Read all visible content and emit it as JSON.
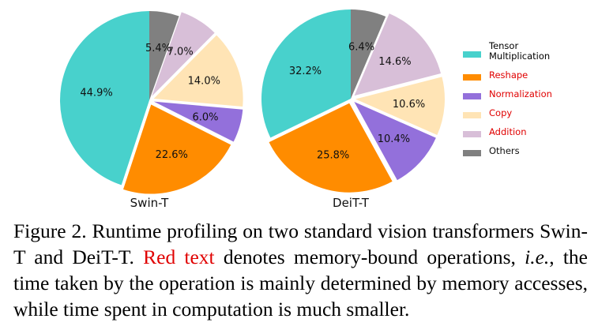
{
  "chart_data": [
    {
      "type": "pie",
      "title": "Swin-T",
      "categories": [
        "Tensor Multiplication",
        "Reshape",
        "Normalization",
        "Copy",
        "Addition",
        "Others"
      ],
      "values": [
        44.9,
        22.6,
        6.0,
        14.0,
        7.0,
        5.4
      ],
      "labels": [
        "44.9%",
        "22.6%",
        "6.0%",
        "14.0%",
        "7.0%",
        "5.4%"
      ],
      "exploded": [
        "Reshape",
        "Normalization",
        "Copy",
        "Addition"
      ]
    },
    {
      "type": "pie",
      "title": "DeiT-T",
      "categories": [
        "Tensor Multiplication",
        "Reshape",
        "Normalization",
        "Copy",
        "Addition",
        "Others"
      ],
      "values": [
        32.2,
        25.8,
        10.4,
        10.6,
        14.6,
        6.4
      ],
      "labels": [
        "32.2%",
        "25.8%",
        "10.4%",
        "10.6%",
        "14.6%",
        "6.4%"
      ],
      "exploded": [
        "Reshape",
        "Normalization",
        "Copy",
        "Addition"
      ]
    }
  ],
  "legend": {
    "items": [
      {
        "line1": "Tensor",
        "line2": "Multiplication",
        "color": "#48d1cc",
        "text_color": "#111111"
      },
      {
        "line1": "Reshape",
        "line2": "",
        "color": "#ff8c00",
        "text_color": "#e00000"
      },
      {
        "line1": "Normalization",
        "line2": "",
        "color": "#9370db",
        "text_color": "#e00000"
      },
      {
        "line1": "Copy",
        "line2": "",
        "color": "#ffe4b5",
        "text_color": "#e00000"
      },
      {
        "line1": "Addition",
        "line2": "",
        "color": "#d8bfd8",
        "text_color": "#e00000"
      },
      {
        "line1": "Others",
        "line2": "",
        "color": "#808080",
        "text_color": "#111111"
      }
    ]
  },
  "caption": {
    "part1": "Figure 2.  Runtime profiling on two standard vision transformers Swin-T and DeiT-T. ",
    "red": "Red text",
    "part2": " denotes memory-bound operations, ",
    "italic": "i.e.",
    "part3": ", the time taken by the operation is mainly determined by memory accesses, while time spent in computation is much smaller."
  }
}
